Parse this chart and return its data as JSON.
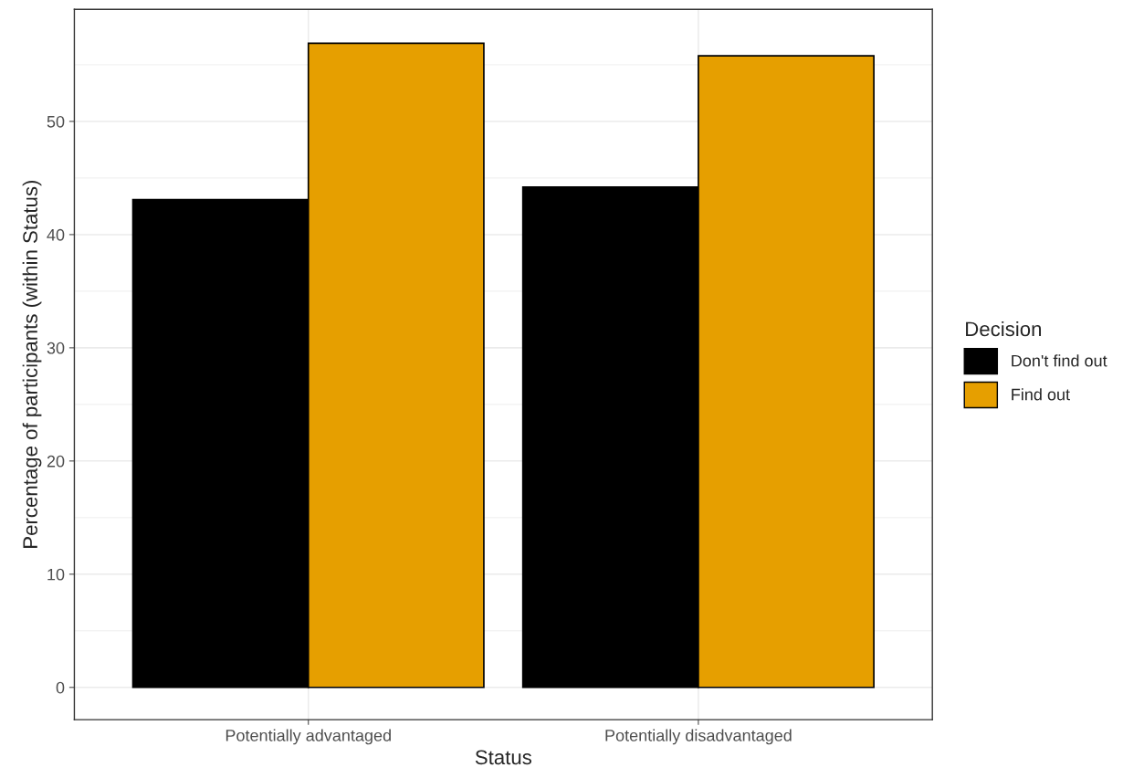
{
  "chart_data": {
    "type": "bar",
    "xlabel": "Status",
    "ylabel": "Percentage of participants (within Status)",
    "legend_title": "Decision",
    "categories": [
      "Potentially advantaged",
      "Potentially disadvantaged"
    ],
    "series": [
      {
        "name": "Don't find out",
        "color": "#000000",
        "values": [
          43.1,
          44.2
        ]
      },
      {
        "name": "Find out",
        "color": "#e69f00",
        "values": [
          56.9,
          55.8
        ]
      }
    ],
    "ylim": [
      -2.85,
      59.9
    ],
    "yticks": [
      0,
      10,
      20,
      30,
      40,
      50
    ],
    "grid": true,
    "legend": "right"
  }
}
